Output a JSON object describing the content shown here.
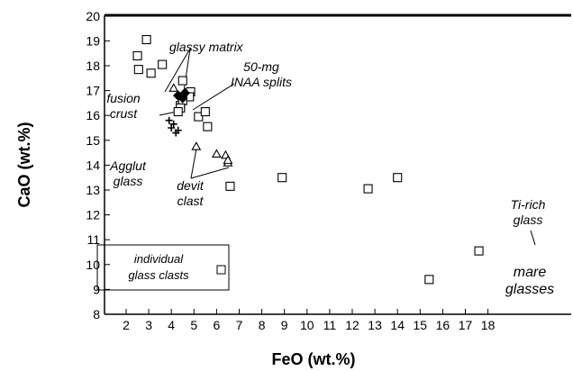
{
  "chart_data": {
    "type": "scatter",
    "title": "",
    "xlabel": "FeO (wt.%)",
    "ylabel": "CaO (wt.%)",
    "xlim": [
      1,
      19
    ],
    "ylim": [
      8,
      20
    ],
    "x_ticks": [
      2,
      3,
      4,
      5,
      6,
      7,
      8,
      9,
      10,
      11,
      12,
      13,
      14,
      15,
      16,
      17,
      18
    ],
    "y_ticks": [
      8,
      9,
      10,
      11,
      12,
      13,
      14,
      15,
      16,
      17,
      18,
      19,
      20
    ],
    "grid": false,
    "legend": {
      "position": "bottom-left",
      "entries": [
        "individual",
        "glass clasts"
      ]
    },
    "series": [
      {
        "marker": "open-square",
        "x": [
          2.9,
          2.5,
          2.55,
          3.1,
          3.6,
          4.5,
          4.85,
          4.8,
          4.4,
          5.2,
          5.5,
          5.6,
          4.5,
          4.4,
          4.3,
          6.6,
          8.9,
          12.7,
          14.0,
          15.4,
          17.6
        ],
        "y": [
          19.05,
          18.4,
          17.85,
          17.7,
          18.05,
          17.4,
          16.95,
          16.75,
          16.4,
          15.95,
          16.15,
          15.55,
          16.6,
          16.3,
          16.15,
          13.15,
          13.5,
          13.05,
          13.5,
          9.4,
          10.55
        ]
      },
      {
        "marker": "cross",
        "x": [
          3.9,
          4.0,
          4.2,
          4.3,
          4.1
        ],
        "y": [
          15.8,
          15.5,
          15.3,
          15.4,
          15.65
        ]
      },
      {
        "marker": "open-triangle",
        "x": [
          5.1,
          6.0,
          6.4,
          6.5,
          6.5,
          4.1
        ],
        "y": [
          14.75,
          14.45,
          14.4,
          14.1,
          14.2,
          17.1
        ]
      },
      {
        "marker": "filled-diamond",
        "x": [
          4.3,
          4.5,
          4.6
        ],
        "y": [
          16.8,
          16.7,
          16.9
        ]
      }
    ],
    "annotations": [
      "glassy matrix",
      "50-mg",
      "INAA splits",
      "fusion",
      "crust",
      "Agglut",
      "glass",
      "devit",
      "clast",
      "Ti-rich",
      "glass",
      "mare",
      "glasses"
    ]
  }
}
